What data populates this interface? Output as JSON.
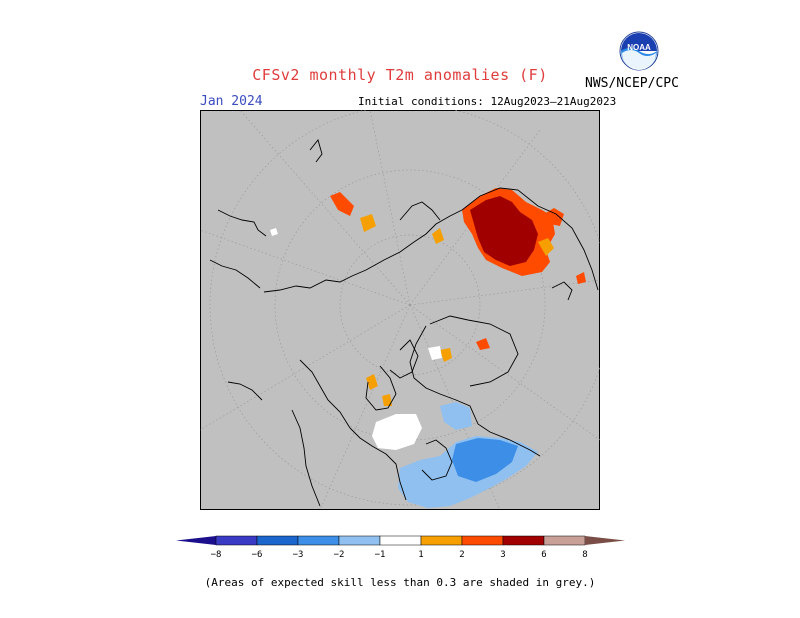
{
  "title": "CFSv2 monthly T2m anomalies (F)",
  "org_label": "NWS/NCEP/CPC",
  "logo_text": "NOAA",
  "valid_month": "Jan 2024",
  "initial_conditions": "Initial conditions: 12Aug2023–21Aug2023",
  "footnote": "(Areas of expected skill less than 0.3 are shaded in grey.)",
  "colors": {
    "map_background": "#c0c0c0",
    "coastline": "#000000",
    "graticule": "#999999"
  },
  "colorbar": {
    "lower_arrow_color": "#1c0f8c",
    "upper_arrow_color": "#7a4e46",
    "bins": [
      {
        "color": "#3a3bc4"
      },
      {
        "color": "#1a66cc"
      },
      {
        "color": "#3c8ee6"
      },
      {
        "color": "#8fc0f0"
      },
      {
        "color": "#ffffff"
      },
      {
        "color": "#f5a000"
      },
      {
        "color": "#ff4b00"
      },
      {
        "color": "#a00000"
      },
      {
        "color": "#c8a098"
      }
    ],
    "tick_labels": [
      "−8",
      "−6",
      "−3",
      "−2",
      "−1",
      "1",
      "2",
      "3",
      "6",
      "8"
    ]
  },
  "anomaly_regions": [
    {
      "name": "siberia-warm-core",
      "color": "#a00000"
    },
    {
      "name": "siberia-warm-edge",
      "color": "#ff4b00"
    },
    {
      "name": "north-america-cool",
      "color": "#8fc0f0"
    },
    {
      "name": "north-america-cool-core",
      "color": "#3c8ee6"
    },
    {
      "name": "no-signal",
      "color": "#ffffff"
    },
    {
      "name": "warm-spots",
      "color": "#f5a000"
    }
  ]
}
